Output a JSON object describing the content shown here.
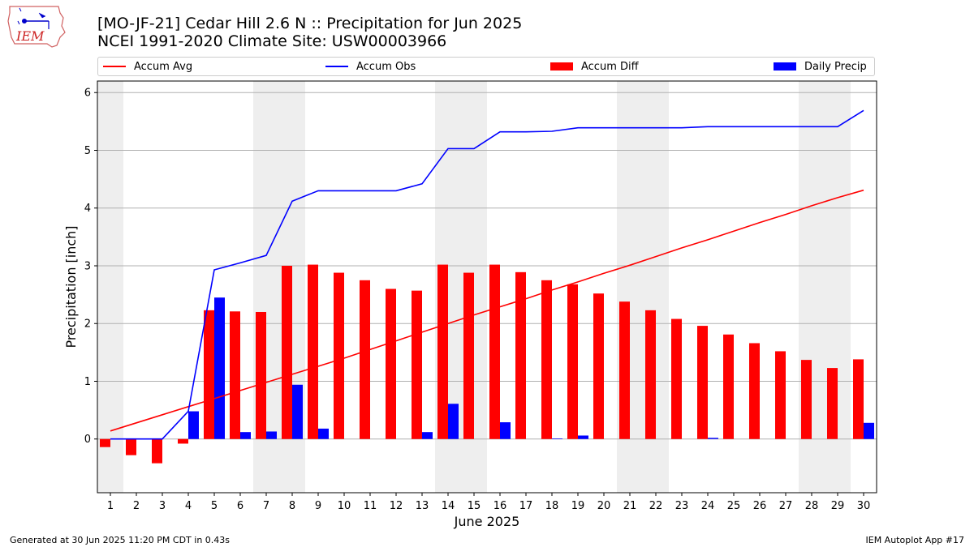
{
  "header": {
    "title_line1": "[MO-JF-21] Cedar Hill 2.6 N :: Precipitation for Jun 2025",
    "title_line2": "NCEI 1991-2020 Climate Site: USW00003966"
  },
  "logo": {
    "text": "IEM",
    "icon": "iowa-state-map-weather-icon"
  },
  "colors": {
    "avg": "#ff0000",
    "obs": "#0000ff",
    "diff": "#ff0000",
    "daily": "#0000ff",
    "weekend": "#eeeeee",
    "grid": "#b0b0b0"
  },
  "legend": [
    {
      "label": "Accum Avg",
      "kind": "line",
      "color": "#ff0000"
    },
    {
      "label": "Accum Obs",
      "kind": "line",
      "color": "#0000ff"
    },
    {
      "label": "Accum Diff",
      "kind": "bar",
      "color": "#ff0000"
    },
    {
      "label": "Daily Precip",
      "kind": "bar",
      "color": "#0000ff"
    }
  ],
  "chart_data": {
    "type": "bar",
    "xlabel": "June 2025",
    "ylabel": "Precipitation [inch]",
    "ylim": [
      -0.93,
      6.2
    ],
    "yticks": [
      0,
      1,
      2,
      3,
      4,
      5,
      6
    ],
    "grid": "horizontal",
    "legend_position": "top",
    "x": [
      1,
      2,
      3,
      4,
      5,
      6,
      7,
      8,
      9,
      10,
      11,
      12,
      13,
      14,
      15,
      16,
      17,
      18,
      19,
      20,
      21,
      22,
      23,
      24,
      25,
      26,
      27,
      28,
      29,
      30
    ],
    "weekend_days": [
      1,
      7,
      8,
      14,
      15,
      21,
      22,
      28,
      29
    ],
    "series": [
      {
        "name": "Accum Avg",
        "type": "line",
        "color": "#ff0000",
        "values": [
          0.14,
          0.28,
          0.42,
          0.56,
          0.7,
          0.84,
          0.98,
          1.12,
          1.26,
          1.4,
          1.55,
          1.7,
          1.85,
          2.0,
          2.15,
          2.29,
          2.43,
          2.58,
          2.72,
          2.87,
          3.01,
          3.16,
          3.31,
          3.45,
          3.6,
          3.75,
          3.89,
          4.04,
          4.18,
          4.31
        ]
      },
      {
        "name": "Accum Obs",
        "type": "line",
        "color": "#0000ff",
        "values": [
          0.0,
          0.0,
          0.0,
          0.48,
          2.93,
          3.05,
          3.18,
          4.12,
          4.3,
          4.3,
          4.3,
          4.3,
          4.42,
          5.03,
          5.03,
          5.32,
          5.32,
          5.33,
          5.39,
          5.39,
          5.39,
          5.39,
          5.39,
          5.41,
          5.41,
          5.41,
          5.41,
          5.41,
          5.41,
          5.69
        ]
      },
      {
        "name": "Accum Diff",
        "type": "bar",
        "color": "#ff0000",
        "values": [
          -0.14,
          -0.28,
          -0.42,
          -0.08,
          2.23,
          2.21,
          2.2,
          3.0,
          3.02,
          2.88,
          2.75,
          2.6,
          2.57,
          3.02,
          2.88,
          3.02,
          2.89,
          2.75,
          2.68,
          2.52,
          2.38,
          2.23,
          2.08,
          1.96,
          1.81,
          1.66,
          1.52,
          1.37,
          1.23,
          1.38
        ]
      },
      {
        "name": "Daily Precip",
        "type": "bar",
        "color": "#0000ff",
        "values": [
          0.0,
          0.0,
          0.0,
          0.48,
          2.45,
          0.12,
          0.13,
          0.94,
          0.18,
          0.0,
          0.0,
          0.0,
          0.12,
          0.61,
          0.0,
          0.29,
          0.0,
          0.01,
          0.06,
          0.0,
          0.0,
          0.0,
          0.0,
          0.02,
          0.0,
          0.0,
          0.0,
          0.0,
          0.0,
          0.28
        ]
      }
    ]
  },
  "footer": {
    "left": "Generated at 30 Jun 2025 11:20 PM CDT in 0.43s",
    "right": "IEM Autoplot App #17"
  }
}
